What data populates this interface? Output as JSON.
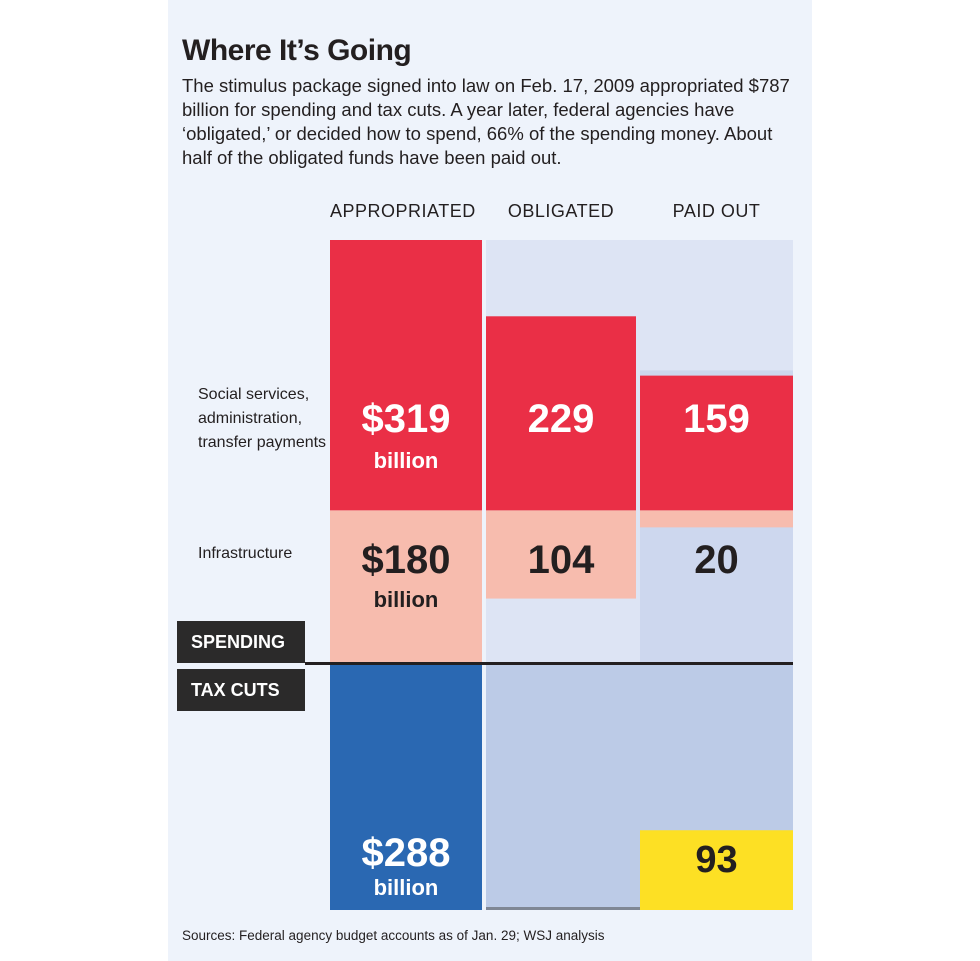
{
  "title": "Where It’s Going",
  "subtitle": "The stimulus package signed into law on Feb. 17, 2009 appropriated $787 billion for spending and tax cuts. A year later, federal agencies have ‘obligated,’ or decided how to spend, 66% of the spending money. About half of the obligated funds have been paid out.",
  "source": "Sources: Federal agency budget accounts as of Jan. 29; WSJ analysis",
  "chart_data": {
    "type": "bar",
    "categories": [
      "APPROPRIATED",
      "OBLIGATED",
      "PAID OUT"
    ],
    "unit": "billion",
    "groups": [
      "SPENDING",
      "TAX CUTS"
    ],
    "series": [
      {
        "name": "Social services, administration, transfer payments",
        "group": "SPENDING",
        "values": [
          319,
          229,
          159
        ],
        "labels": [
          "$319",
          "229",
          "159"
        ],
        "color": "#ea2f46"
      },
      {
        "name": "Infrastructure",
        "group": "SPENDING",
        "values": [
          180,
          104,
          20
        ],
        "labels": [
          "$180",
          "104",
          "20"
        ],
        "color": "#f7bcae"
      },
      {
        "name": "Tax cuts",
        "group": "TAX CUTS",
        "values": [
          288,
          null,
          93
        ],
        "labels": [
          "$288",
          "",
          "93"
        ],
        "color_appropriated": "#2a68b2",
        "color_paid": "#fde024"
      }
    ],
    "colors": {
      "background_spending": "#dde4f4",
      "background_infrastructure_paid": "#cdd7ee",
      "background_tax": "#bccbe7",
      "label_dark": "#231f20",
      "label_light": "#ffffff"
    }
  }
}
